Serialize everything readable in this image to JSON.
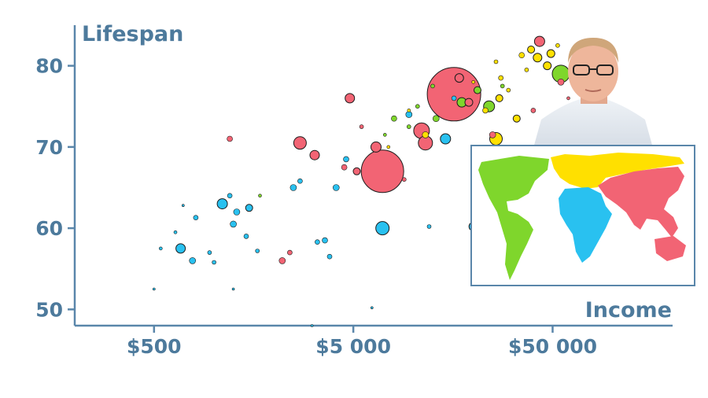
{
  "chart_data": {
    "type": "scatter",
    "title": "",
    "ylabel": "Lifespan",
    "xlabel": "Income",
    "x_scale": "log",
    "xlim": [
      200,
      200000
    ],
    "ylim": [
      48,
      85
    ],
    "x_ticks": [
      {
        "value": 500,
        "label": "$500"
      },
      {
        "value": 5000,
        "label": "$5 000"
      },
      {
        "value": 50000,
        "label": "$50 000"
      }
    ],
    "y_ticks": [
      {
        "value": 50,
        "label": "50"
      },
      {
        "value": 60,
        "label": "60"
      },
      {
        "value": 70,
        "label": "70"
      },
      {
        "value": 80,
        "label": "80"
      }
    ],
    "grid": false,
    "legend": "world map inset at bottom-right, colored by region",
    "region_colors": {
      "africa": "#29c1f0",
      "asia": "#f26474",
      "americas": "#7fd62c",
      "europe": "#ffe000"
    },
    "series": [
      {
        "region": "asia",
        "color": "#f26474",
        "points": [
          {
            "x": 16000,
            "y": 76.5,
            "size": 68
          },
          {
            "x": 7000,
            "y": 67,
            "size": 54
          },
          {
            "x": 43000,
            "y": 83,
            "size": 13
          },
          {
            "x": 4800,
            "y": 76,
            "size": 12
          },
          {
            "x": 11000,
            "y": 72,
            "size": 20
          },
          {
            "x": 2700,
            "y": 70.5,
            "size": 16
          },
          {
            "x": 3200,
            "y": 69,
            "size": 12
          },
          {
            "x": 6500,
            "y": 70,
            "size": 13
          },
          {
            "x": 11500,
            "y": 70.5,
            "size": 18
          },
          {
            "x": 17000,
            "y": 78.5,
            "size": 11
          },
          {
            "x": 19000,
            "y": 75.5,
            "size": 10
          },
          {
            "x": 25000,
            "y": 71.5,
            "size": 8
          },
          {
            "x": 1200,
            "y": 71,
            "size": 7
          },
          {
            "x": 2200,
            "y": 56,
            "size": 8
          },
          {
            "x": 2400,
            "y": 57,
            "size": 6
          },
          {
            "x": 5200,
            "y": 67,
            "size": 9
          },
          {
            "x": 4500,
            "y": 67.5,
            "size": 7
          },
          {
            "x": 55000,
            "y": 78,
            "size": 8
          },
          {
            "x": 33000,
            "y": 67.5,
            "size": 6
          },
          {
            "x": 40000,
            "y": 74.5,
            "size": 6
          },
          {
            "x": 9000,
            "y": 66,
            "size": 5
          },
          {
            "x": 60000,
            "y": 76,
            "size": 4
          },
          {
            "x": 5500,
            "y": 72.5,
            "size": 5
          }
        ]
      },
      {
        "region": "africa",
        "color": "#29c1f0",
        "points": [
          {
            "x": 1100,
            "y": 63,
            "size": 13
          },
          {
            "x": 7000,
            "y": 60,
            "size": 17
          },
          {
            "x": 14500,
            "y": 71,
            "size": 13
          },
          {
            "x": 20000,
            "y": 60.2,
            "size": 11
          },
          {
            "x": 4100,
            "y": 65,
            "size": 8
          },
          {
            "x": 1300,
            "y": 62,
            "size": 8
          },
          {
            "x": 1250,
            "y": 60.5,
            "size": 8
          },
          {
            "x": 680,
            "y": 57.5,
            "size": 12
          },
          {
            "x": 780,
            "y": 56,
            "size": 8
          },
          {
            "x": 1500,
            "y": 62.5,
            "size": 9
          },
          {
            "x": 3600,
            "y": 58.5,
            "size": 7
          },
          {
            "x": 3300,
            "y": 58.3,
            "size": 6
          },
          {
            "x": 2500,
            "y": 65,
            "size": 8
          },
          {
            "x": 2700,
            "y": 65.8,
            "size": 6
          },
          {
            "x": 9500,
            "y": 74,
            "size": 8
          },
          {
            "x": 16000,
            "y": 76,
            "size": 6
          },
          {
            "x": 4600,
            "y": 68.5,
            "size": 7
          },
          {
            "x": 1200,
            "y": 64,
            "size": 6
          },
          {
            "x": 1650,
            "y": 57.2,
            "size": 5
          },
          {
            "x": 1450,
            "y": 59,
            "size": 6
          },
          {
            "x": 1000,
            "y": 55.8,
            "size": 5
          },
          {
            "x": 950,
            "y": 57,
            "size": 5
          },
          {
            "x": 810,
            "y": 61.3,
            "size": 6
          },
          {
            "x": 640,
            "y": 59.5,
            "size": 4
          },
          {
            "x": 540,
            "y": 57.5,
            "size": 4
          },
          {
            "x": 500,
            "y": 52.5,
            "size": 3
          },
          {
            "x": 700,
            "y": 62.8,
            "size": 3
          },
          {
            "x": 1250,
            "y": 52.5,
            "size": 2
          },
          {
            "x": 3100,
            "y": 48,
            "size": 2
          },
          {
            "x": 6200,
            "y": 50.2,
            "size": 2
          },
          {
            "x": 3800,
            "y": 56.5,
            "size": 6
          },
          {
            "x": 12000,
            "y": 60.2,
            "size": 5
          }
        ]
      },
      {
        "region": "americas",
        "color": "#7fd62c",
        "points": [
          {
            "x": 55000,
            "y": 79,
            "size": 22
          },
          {
            "x": 24000,
            "y": 75,
            "size": 14
          },
          {
            "x": 17500,
            "y": 75.5,
            "size": 12
          },
          {
            "x": 21000,
            "y": 77,
            "size": 9
          },
          {
            "x": 13000,
            "y": 73.5,
            "size": 8
          },
          {
            "x": 9500,
            "y": 72.5,
            "size": 5
          },
          {
            "x": 8000,
            "y": 73.5,
            "size": 7
          },
          {
            "x": 12500,
            "y": 77.5,
            "size": 5
          },
          {
            "x": 28000,
            "y": 77.5,
            "size": 5
          },
          {
            "x": 1700,
            "y": 64,
            "size": 4
          },
          {
            "x": 7200,
            "y": 71.5,
            "size": 4
          },
          {
            "x": 10500,
            "y": 75,
            "size": 5
          }
        ]
      },
      {
        "region": "europe",
        "color": "#ffe000",
        "points": [
          {
            "x": 42000,
            "y": 81,
            "size": 11
          },
          {
            "x": 47000,
            "y": 80,
            "size": 10
          },
          {
            "x": 49000,
            "y": 81.5,
            "size": 10
          },
          {
            "x": 39000,
            "y": 82,
            "size": 9
          },
          {
            "x": 35000,
            "y": 81.3,
            "size": 7
          },
          {
            "x": 33000,
            "y": 73.5,
            "size": 9
          },
          {
            "x": 27000,
            "y": 76,
            "size": 9
          },
          {
            "x": 26000,
            "y": 71,
            "size": 16
          },
          {
            "x": 11500,
            "y": 71.5,
            "size": 8
          },
          {
            "x": 23000,
            "y": 74.5,
            "size": 7
          },
          {
            "x": 27500,
            "y": 78.5,
            "size": 6
          },
          {
            "x": 30000,
            "y": 77,
            "size": 5
          },
          {
            "x": 53000,
            "y": 82.5,
            "size": 5
          },
          {
            "x": 37000,
            "y": 79.5,
            "size": 5
          },
          {
            "x": 7500,
            "y": 70,
            "size": 4
          },
          {
            "x": 9500,
            "y": 74.5,
            "size": 4
          },
          {
            "x": 20000,
            "y": 78,
            "size": 4
          },
          {
            "x": 26000,
            "y": 80.5,
            "size": 5
          }
        ]
      }
    ]
  }
}
